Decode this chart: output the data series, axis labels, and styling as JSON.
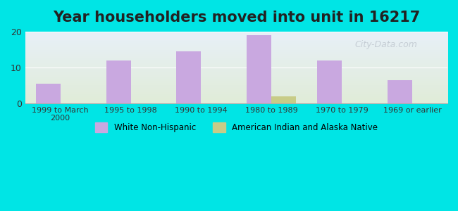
{
  "title": "Year householders moved into unit in 16217",
  "categories": [
    "1999 to March\n2000",
    "1995 to 1998",
    "1990 to 1994",
    "1980 to 1989",
    "1970 to 1979",
    "1969 or earlier"
  ],
  "white_non_hispanic": [
    5.5,
    12.0,
    14.5,
    19.0,
    12.0,
    6.5
  ],
  "american_indian": [
    0,
    0,
    0,
    2.0,
    0,
    0
  ],
  "bar_color_white": "#c9a8e0",
  "bar_color_indian": "#c8cc87",
  "background_outer": "#00e5e5",
  "background_inner_top": "#e8f0f8",
  "background_inner_bottom": "#e0ecd8",
  "ylim": [
    0,
    20
  ],
  "yticks": [
    0,
    10,
    20
  ],
  "legend_label_white": "White Non-Hispanic",
  "legend_label_indian": "American Indian and Alaska Native",
  "title_fontsize": 15,
  "bar_width": 0.35
}
